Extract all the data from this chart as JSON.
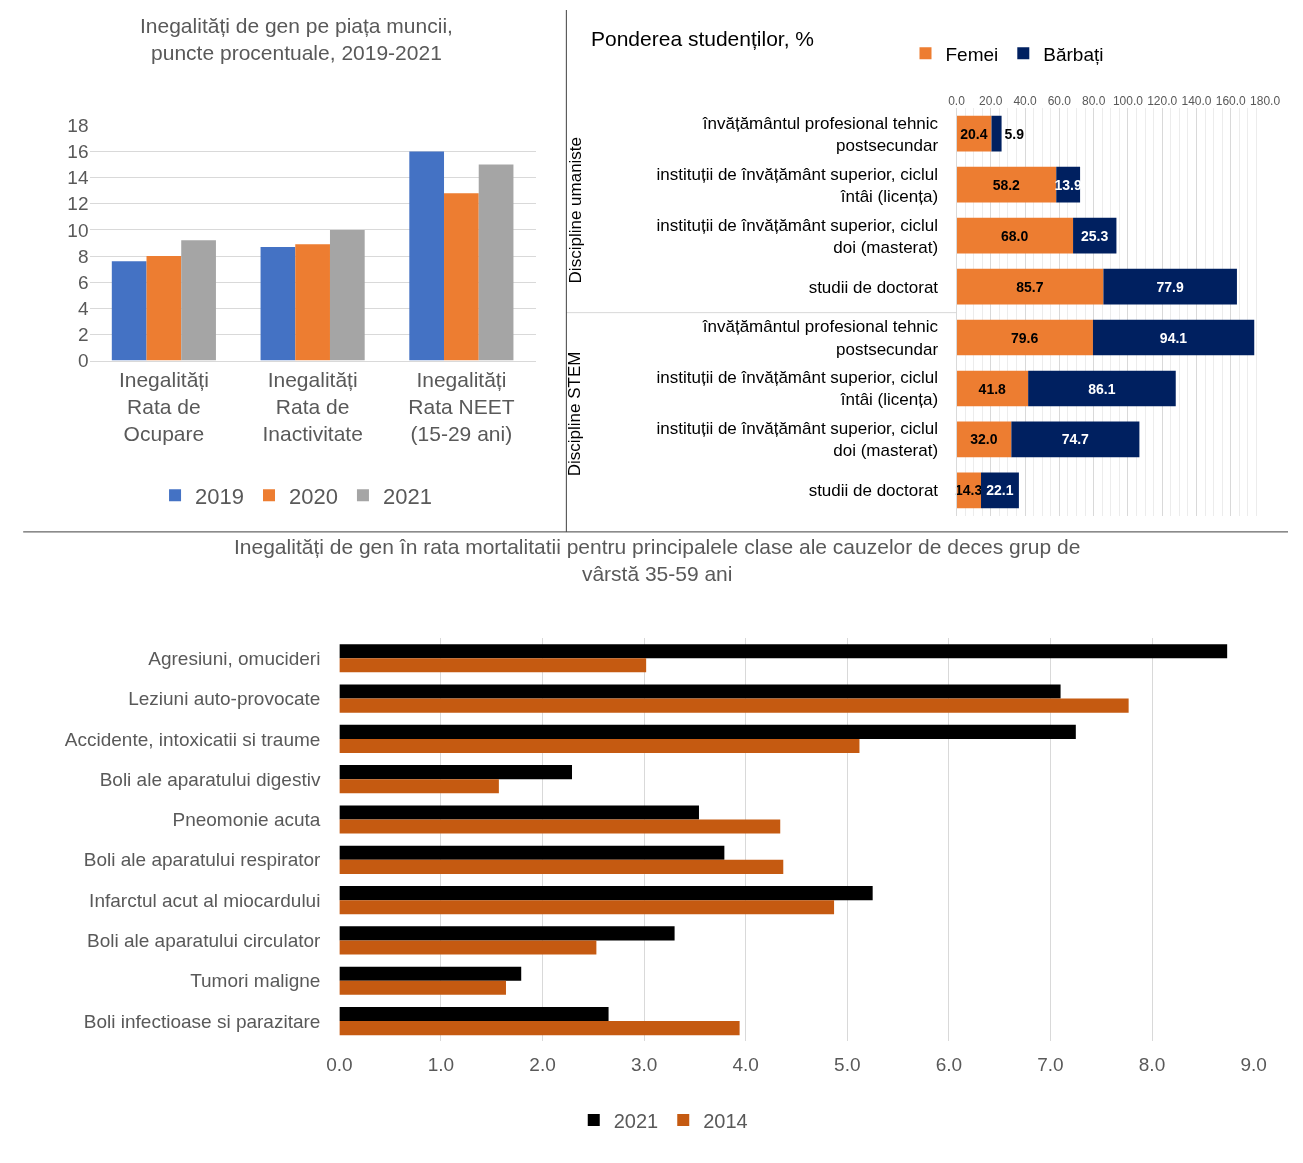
{
  "chart_data": [
    {
      "type": "bar",
      "title": "Inegalități de gen pe piața muncii, puncte procentuale, 2019-2021",
      "categories": [
        "Inegalități Rata de Ocupare",
        "Inegalități Rata de Inactivitate",
        "Inegalități Rata NEET (15-29 ani)"
      ],
      "series": [
        {
          "name": "2019",
          "color": "#4472c4",
          "values": [
            7.6,
            8.7,
            16.0
          ]
        },
        {
          "name": "2020",
          "color": "#ed7d31",
          "values": [
            8.0,
            8.9,
            12.8
          ]
        },
        {
          "name": "2021",
          "color": "#a5a5a5",
          "values": [
            9.2,
            10.0,
            15.0
          ]
        }
      ],
      "ylim": [
        0,
        18
      ],
      "yticks": [
        0,
        2,
        4,
        6,
        8,
        10,
        12,
        14,
        16,
        18
      ],
      "grid": "y",
      "legend": "bottom"
    },
    {
      "type": "bar",
      "orientation": "horizontal",
      "stacked": true,
      "title": "Ponderea studenților, %",
      "categories": [
        "învățământul profesional tehnic postsecundar",
        "instituții de învățământ superior, ciclul întâi (licența)",
        "instituții de învățământ superior, ciclul doi (masterat)",
        "studii de doctorat",
        "învățământul profesional tehnic postsecundar",
        "instituții de învățământ superior, ciclul întâi (licența)",
        "instituții de învățământ superior, ciclul doi (masterat)",
        "studii de doctorat"
      ],
      "series": [
        {
          "name": "Femei",
          "color": "#ed7d31",
          "values": [
            20.4,
            58.2,
            68.0,
            85.7,
            79.6,
            41.8,
            32.0,
            14.3
          ],
          "value_labels": [
            "20.4",
            "58.2",
            "68.0",
            "85.7",
            "79.6",
            "41.8",
            "32.0",
            "14.3"
          ]
        },
        {
          "name": "Bărbați",
          "color": "#002060",
          "values": [
            5.9,
            13.9,
            25.3,
            77.9,
            94.1,
            86.1,
            74.7,
            22.1
          ],
          "value_labels": [
            "5.9",
            "13.9",
            "25.3",
            "77.9",
            "94.1",
            "86.1",
            "74.7",
            "22.1"
          ]
        }
      ],
      "annotations": [
        "Discipline umaniste",
        "Discipline STEM"
      ],
      "xlim": [
        0,
        180
      ],
      "xticks": [
        {
          "value": 0,
          "label": "0.0"
        },
        {
          "value": 20,
          "label": "20.0"
        },
        {
          "value": 40,
          "label": "40.0"
        },
        {
          "value": 60,
          "label": "60.0"
        },
        {
          "value": 80,
          "label": "80.0"
        },
        {
          "value": 100,
          "label": "100.0"
        },
        {
          "value": 120,
          "label": "120.0"
        },
        {
          "value": 140,
          "label": "140.0"
        },
        {
          "value": 160,
          "label": "160.0"
        },
        {
          "value": 180,
          "label": "180.0"
        }
      ],
      "grid": "x",
      "legend": "top"
    },
    {
      "type": "bar",
      "orientation": "horizontal",
      "title": "Inegalități de gen în rata mortalitatii pentru principalele clase ale cauzelor de deces grup de vârstă 35-59 ani",
      "categories": [
        "Agresiuni, omucideri",
        "Leziuni auto-provocate",
        "Accidente, intoxicatii si traume",
        "Boli ale aparatului digestiv",
        "Pneomonie acuta",
        "Boli ale aparatului respirator",
        "Infarctul acut al miocardului",
        "Boli ale aparatului circulator",
        "Tumori maligne",
        "Boli infectioase si parazitare"
      ],
      "series": [
        {
          "name": "2021",
          "color": "#000000",
          "values": [
            8.74,
            7.1,
            7.25,
            2.29,
            3.54,
            3.79,
            5.25,
            3.3,
            1.79,
            2.65
          ]
        },
        {
          "name": "2014",
          "color": "#c55a11",
          "values": [
            3.02,
            7.77,
            5.12,
            1.57,
            4.34,
            4.37,
            4.87,
            2.53,
            1.64,
            3.94
          ]
        }
      ],
      "xlim": [
        0,
        9
      ],
      "xticks": [
        {
          "value": 0,
          "label": "0.0"
        },
        {
          "value": 1,
          "label": "1.0"
        },
        {
          "value": 2,
          "label": "2.0"
        },
        {
          "value": 3,
          "label": "3.0"
        },
        {
          "value": 4,
          "label": "4.0"
        },
        {
          "value": 5,
          "label": "5.0"
        },
        {
          "value": 6,
          "label": "6.0"
        },
        {
          "value": 7,
          "label": "7.0"
        },
        {
          "value": 8,
          "label": "8.0"
        },
        {
          "value": 9,
          "label": "9.0"
        }
      ],
      "grid": "x",
      "legend": "bottom"
    }
  ]
}
